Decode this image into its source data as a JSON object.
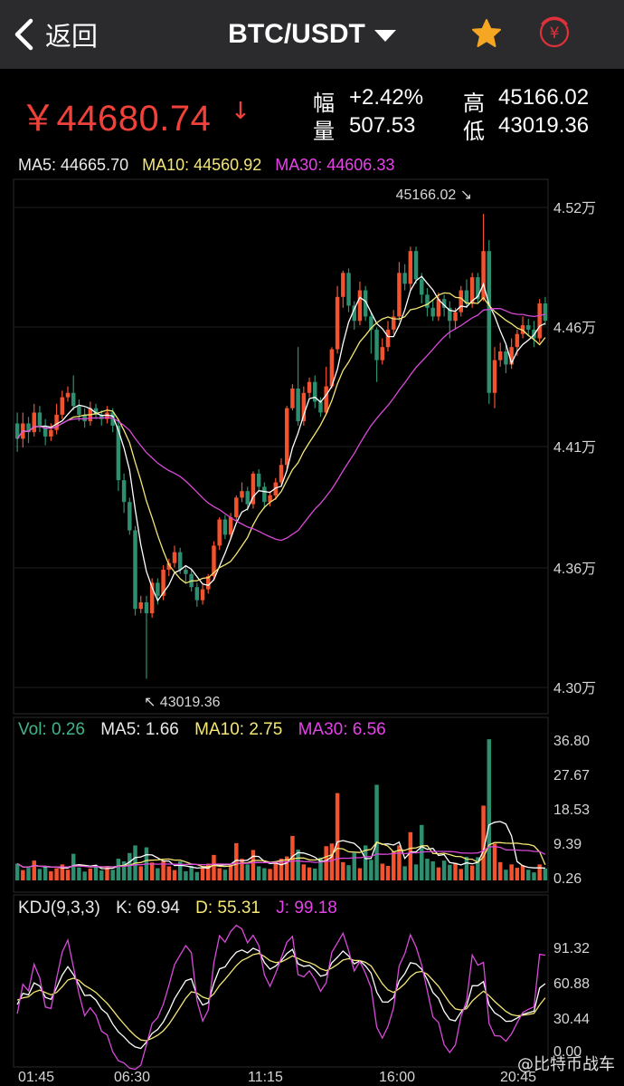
{
  "nav": {
    "back_label": "返回",
    "pair_title": "BTC/USDT",
    "icons": [
      "back-chevron-icon",
      "dropdown-triangle-icon",
      "star-icon",
      "rmb-currency-icon"
    ],
    "star_color": "#f5a623",
    "rmb_color": "#e0313a"
  },
  "ticker": {
    "price": "￥44680.74",
    "price_arrow": "↓",
    "price_color": "#f0413a",
    "change_label": "幅",
    "change_value": "+2.42%",
    "volume_label": "量",
    "volume_value": "507.53",
    "high_label": "高",
    "high_value": "45166.02",
    "low_label": "低",
    "low_value": "43019.36"
  },
  "ma": {
    "ma5": "MA5: 44665.70",
    "ma10": "MA10: 44560.92",
    "ma30": "MA30: 44606.33"
  },
  "price_axis": [
    "4.52万",
    "4.46万",
    "4.41万",
    "4.36万",
    "4.30万"
  ],
  "price_marks": {
    "high": "45166.02",
    "low": "43019.36"
  },
  "vol": {
    "vol": "Vol: 0.26",
    "ma5": "MA5: 1.66",
    "ma10": "MA10: 2.75",
    "ma30": "MA30: 6.56",
    "axis": [
      "36.80",
      "27.67",
      "18.53",
      "9.39",
      "0.26"
    ]
  },
  "kdj": {
    "label": "KDJ(9,3,3)",
    "k": "K: 69.94",
    "d": "D: 55.31",
    "j": "J: 99.18",
    "axis": [
      "91.32",
      "60.88",
      "30.44",
      "0.00"
    ]
  },
  "time_axis": [
    "01:45",
    "06:30",
    "11:15",
    "16:00",
    "20:45"
  ],
  "watermark": "@比特币战车",
  "chart_data": {
    "type": "candlestick",
    "pair": "BTC/USDT",
    "high": 45166.02,
    "low": 43019.36,
    "ylim": [
      43000,
      45250
    ],
    "candles": [
      [
        44210,
        44140,
        44260,
        44080
      ],
      [
        44140,
        44210,
        44260,
        44100
      ],
      [
        44210,
        44170,
        44240,
        44120
      ],
      [
        44170,
        44260,
        44300,
        44150
      ],
      [
        44260,
        44200,
        44290,
        44170
      ],
      [
        44200,
        44150,
        44230,
        44110
      ],
      [
        44150,
        44180,
        44210,
        44130
      ],
      [
        44180,
        44250,
        44300,
        44160
      ],
      [
        44250,
        44330,
        44360,
        44230
      ],
      [
        44330,
        44350,
        44380,
        44310
      ],
      [
        44350,
        44290,
        44430,
        44270
      ],
      [
        44290,
        44250,
        44320,
        44220
      ],
      [
        44250,
        44220,
        44280,
        44190
      ],
      [
        44220,
        44280,
        44310,
        44200
      ],
      [
        44280,
        44250,
        44300,
        44230
      ],
      [
        44250,
        44230,
        44270,
        44200
      ],
      [
        44230,
        44260,
        44290,
        44210
      ],
      [
        44260,
        44200,
        44280,
        44170
      ],
      [
        44200,
        43950,
        44220,
        43900
      ],
      [
        43950,
        43850,
        43980,
        43800
      ],
      [
        43850,
        43720,
        43870,
        43700
      ],
      [
        43720,
        43360,
        43740,
        43330
      ],
      [
        43360,
        43390,
        43420,
        43340
      ],
      [
        43390,
        43340,
        43420,
        43040
      ],
      [
        43340,
        43480,
        43500,
        43320
      ],
      [
        43480,
        43420,
        43500,
        43380
      ],
      [
        43420,
        43540,
        43560,
        43400
      ],
      [
        43540,
        43570,
        43590,
        43510
      ],
      [
        43570,
        43620,
        43650,
        43550
      ],
      [
        43620,
        43540,
        43640,
        43520
      ],
      [
        43540,
        43520,
        43560,
        43480
      ],
      [
        43520,
        43460,
        43540,
        43440
      ],
      [
        43460,
        43400,
        43480,
        43370
      ],
      [
        43400,
        43450,
        43470,
        43380
      ],
      [
        43450,
        43510,
        43520,
        43430
      ],
      [
        43510,
        43650,
        43670,
        43490
      ],
      [
        43650,
        43770,
        43780,
        43630
      ],
      [
        43770,
        43700,
        43790,
        43680
      ],
      [
        43700,
        43780,
        43800,
        43680
      ],
      [
        43780,
        43870,
        43880,
        43760
      ],
      [
        43870,
        43900,
        43940,
        43850
      ],
      [
        43900,
        43840,
        43920,
        43810
      ],
      [
        43840,
        43980,
        43990,
        43820
      ],
      [
        43980,
        43920,
        44000,
        43900
      ],
      [
        43920,
        43850,
        43940,
        43820
      ],
      [
        43850,
        43880,
        43900,
        43830
      ],
      [
        43880,
        43940,
        43960,
        43860
      ],
      [
        43940,
        44020,
        44050,
        43930
      ],
      [
        44020,
        44280,
        44290,
        44000
      ],
      [
        44280,
        44370,
        44390,
        44270
      ],
      [
        44370,
        44220,
        44560,
        44200
      ],
      [
        44220,
        44350,
        44380,
        44200
      ],
      [
        44350,
        44400,
        44420,
        44330
      ],
      [
        44400,
        44310,
        44430,
        44280
      ],
      [
        44310,
        44260,
        44330,
        44240
      ],
      [
        44260,
        44380,
        44470,
        44250
      ],
      [
        44380,
        44550,
        44560,
        44370
      ],
      [
        44550,
        44790,
        44840,
        44530
      ],
      [
        44790,
        44900,
        44910,
        44740
      ],
      [
        44900,
        44750,
        44920,
        44720
      ],
      [
        44750,
        44680,
        44770,
        44640
      ],
      [
        44680,
        44820,
        44860,
        44660
      ],
      [
        44820,
        44700,
        44840,
        44680
      ],
      [
        44700,
        44640,
        44720,
        44530
      ],
      [
        44640,
        44500,
        44650,
        44400
      ],
      [
        44500,
        44560,
        44600,
        44480
      ],
      [
        44560,
        44640,
        44680,
        44540
      ],
      [
        44640,
        44700,
        44730,
        44620
      ],
      [
        44700,
        44900,
        44950,
        44680
      ],
      [
        44900,
        44850,
        44940,
        44820
      ],
      [
        44850,
        45000,
        45020,
        44820
      ],
      [
        45000,
        44870,
        45020,
        44850
      ],
      [
        44870,
        44800,
        44900,
        44760
      ],
      [
        44800,
        44740,
        44830,
        44700
      ],
      [
        44740,
        44700,
        44780,
        44680
      ],
      [
        44700,
        44780,
        44810,
        44680
      ],
      [
        44780,
        44740,
        44800,
        44700
      ],
      [
        44740,
        44680,
        44770,
        44600
      ],
      [
        44680,
        44720,
        44740,
        44640
      ],
      [
        44720,
        44820,
        44840,
        44700
      ],
      [
        44820,
        44760,
        44870,
        44740
      ],
      [
        44760,
        44880,
        44900,
        44740
      ],
      [
        44880,
        44780,
        44900,
        44760
      ],
      [
        44780,
        45000,
        45170,
        44770
      ],
      [
        45000,
        44350,
        45050,
        44300
      ],
      [
        44350,
        44500,
        44560,
        44280
      ],
      [
        44500,
        44540,
        44580,
        44470
      ],
      [
        44540,
        44480,
        44570,
        44440
      ],
      [
        44480,
        44560,
        44600,
        44460
      ],
      [
        44560,
        44620,
        44640,
        44520
      ],
      [
        44620,
        44660,
        44700,
        44600
      ],
      [
        44660,
        44640,
        44690,
        44610
      ],
      [
        44640,
        44600,
        44680,
        44560
      ],
      [
        44600,
        44760,
        44780,
        44580
      ],
      [
        44760,
        44681,
        44790,
        44660
      ]
    ],
    "volume": [
      4.2,
      2.5,
      3.1,
      5.0,
      2.8,
      3.5,
      2.2,
      3.0,
      4.0,
      2.6,
      6.8,
      3.2,
      2.1,
      2.9,
      3.8,
      2.4,
      3.3,
      2.6,
      5.5,
      4.8,
      7.0,
      9.0,
      3.5,
      8.5,
      4.5,
      3.0,
      5.0,
      3.5,
      2.5,
      4.8,
      2.2,
      3.6,
      2.0,
      3.1,
      4.2,
      6.5,
      3.0,
      2.6,
      3.9,
      9.6,
      5.5,
      4.0,
      7.8,
      3.5,
      3.0,
      2.8,
      4.6,
      5.5,
      6.1,
      11.5,
      7.9,
      4.0,
      3.2,
      2.9,
      5.8,
      8.8,
      9.5,
      22.8,
      4.6,
      3.8,
      7.0,
      3.0,
      9.0,
      5.2,
      25.0,
      4.2,
      3.6,
      7.5,
      9.0,
      3.5,
      12.5,
      4.0,
      14.4,
      5.5,
      4.8,
      3.2,
      5.0,
      3.9,
      4.4,
      2.8,
      6.0,
      3.7,
      5.9,
      19.5,
      37.0,
      9.5,
      4.6,
      2.6,
      4.0,
      3.1,
      3.8,
      2.6,
      1.9,
      4.0,
      2.9
    ]
  }
}
